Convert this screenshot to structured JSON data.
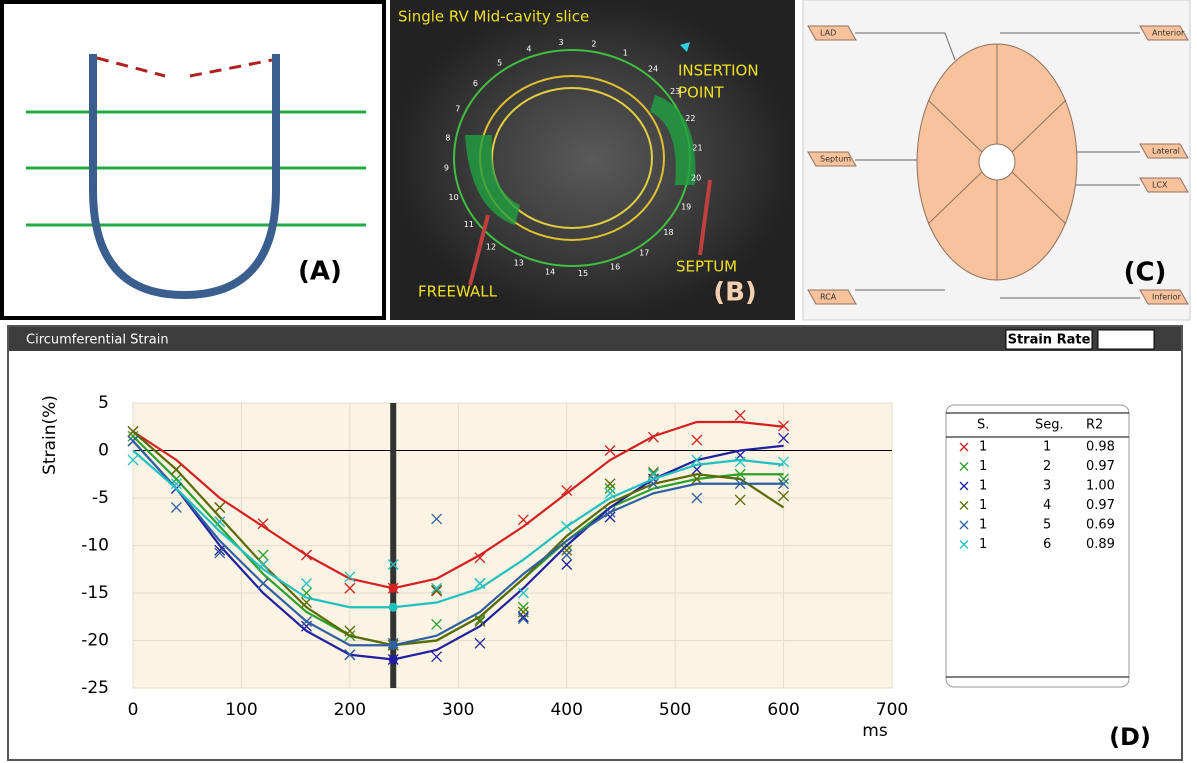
{
  "panel_a": {
    "label": "(A)"
  },
  "panel_b": {
    "title": "Single RV Mid-cavity slice",
    "insertion_label": [
      "INSERTION",
      "POINT"
    ],
    "septum_label": "SEPTUM",
    "freewall_label": "FREEWALL",
    "label": "(B)",
    "segment_numbers": [
      1,
      2,
      3,
      4,
      5,
      6,
      7,
      8,
      9,
      10,
      11,
      12,
      13,
      14,
      15,
      16,
      17,
      18,
      19,
      20,
      21,
      22,
      23,
      24
    ]
  },
  "panel_c": {
    "lad": "LAD",
    "anterior": "Anterior",
    "septum": "Septum",
    "lateral": "Lateral",
    "lcx": "LCX",
    "rca": "RCA",
    "inferior": "Inferior",
    "label": "(C)"
  },
  "panel_d": {
    "header": "Circumferential Strain",
    "button": "Strain Rate",
    "label": "(D)",
    "table": {
      "columns": [
        "S.",
        "Seg.",
        "R2"
      ],
      "rows": [
        [
          "1",
          "1",
          "0.98"
        ],
        [
          "1",
          "2",
          "0.97"
        ],
        [
          "1",
          "3",
          "1.00"
        ],
        [
          "1",
          "4",
          "0.97"
        ],
        [
          "1",
          "5",
          "0.69"
        ],
        [
          "1",
          "6",
          "0.89"
        ]
      ]
    }
  },
  "chart_data": {
    "type": "line",
    "y_label": "Strain(%)",
    "x_label": "ms",
    "x": [
      0,
      40,
      80,
      120,
      160,
      200,
      240,
      280,
      320,
      360,
      400,
      440,
      480,
      520,
      560,
      600
    ],
    "xlim": [
      0,
      700
    ],
    "xticks": [
      0,
      100,
      200,
      300,
      400,
      500,
      600,
      700
    ],
    "ylim": [
      -25,
      5
    ],
    "yticks": [
      5,
      0,
      -5,
      -10,
      -15,
      -20,
      -25
    ],
    "grid": true,
    "cursor_x": 240,
    "series": [
      {
        "color": "#d42020",
        "values": [
          2,
          -1,
          -5,
          -8,
          -11,
          -13.5,
          -14.5,
          -13.5,
          -11,
          -8,
          -4.5,
          -1,
          1.5,
          3,
          3,
          2.5
        ],
        "marker_values": [
          2,
          -2,
          -6,
          -7.7,
          -11,
          -14.5,
          -14.5,
          -14.8,
          -11.3,
          -7.3,
          -4.2,
          0,
          1.4,
          1.1,
          3.7,
          2.6
        ]
      },
      {
        "color": "#2ca02c",
        "values": [
          1.5,
          -3,
          -8,
          -13,
          -17,
          -19.5,
          -20.5,
          -20,
          -17.5,
          -13.5,
          -9.5,
          -6,
          -4,
          -3,
          -2.5,
          -2.5
        ],
        "marker_values": [
          1.5,
          -3,
          -7.5,
          -11,
          -15,
          -19.5,
          -20.5,
          -18.3,
          -17.8,
          -16.5,
          -10,
          -4,
          -2.5,
          -3,
          -2.5,
          -3
        ]
      },
      {
        "color": "#2020a0",
        "values": [
          1,
          -4,
          -10,
          -15,
          -19,
          -21.5,
          -22,
          -21,
          -18.5,
          -14.5,
          -10,
          -6,
          -3,
          -1,
          0,
          0.5
        ],
        "marker_values": [
          1,
          -4,
          -10.5,
          -14,
          -18.5,
          -21.5,
          -22,
          -21.7,
          -20.3,
          -17.5,
          -12,
          -7,
          -3,
          -2,
          -0.5,
          1.3
        ]
      },
      {
        "color": "#5a6a00",
        "values": [
          2,
          -2,
          -7,
          -12,
          -16.5,
          -19.5,
          -20.5,
          -20,
          -17.5,
          -13.5,
          -9,
          -5.5,
          -3.5,
          -2.5,
          -3,
          -6
        ],
        "marker_values": [
          2,
          -2,
          -6,
          -12,
          -16,
          -19,
          -20.5,
          -14.7,
          -18,
          -17,
          -10.5,
          -3.5,
          -2.3,
          -3,
          -5.2,
          -4.8
        ]
      },
      {
        "color": "#3060a0",
        "values": [
          1,
          -4,
          -9.5,
          -14,
          -18,
          -20.5,
          -20.5,
          -19.5,
          -17,
          -13,
          -9.5,
          -6.5,
          -4.5,
          -3.5,
          -3.5,
          -3.5
        ],
        "marker_values": [
          1,
          -6,
          -10.8,
          -14,
          -18,
          -21.5,
          -20.3,
          -7.2,
          -14,
          -17.7,
          -11,
          -6.5,
          -3.5,
          -5,
          -3.5,
          -3.5
        ]
      },
      {
        "color": "#20c0c0",
        "values": [
          0,
          -4,
          -8.5,
          -12.5,
          -15.5,
          -16.5,
          -16.5,
          -16,
          -14.5,
          -11.5,
          -8,
          -5,
          -3,
          -1.5,
          -1,
          -1.5
        ],
        "marker_values": [
          -1,
          -3.5,
          -7.5,
          -12,
          -14,
          -13.3,
          -12,
          -14.5,
          -14,
          -15,
          -8,
          -4.5,
          -2.5,
          -1,
          -1.2,
          -1.2
        ]
      }
    ]
  }
}
